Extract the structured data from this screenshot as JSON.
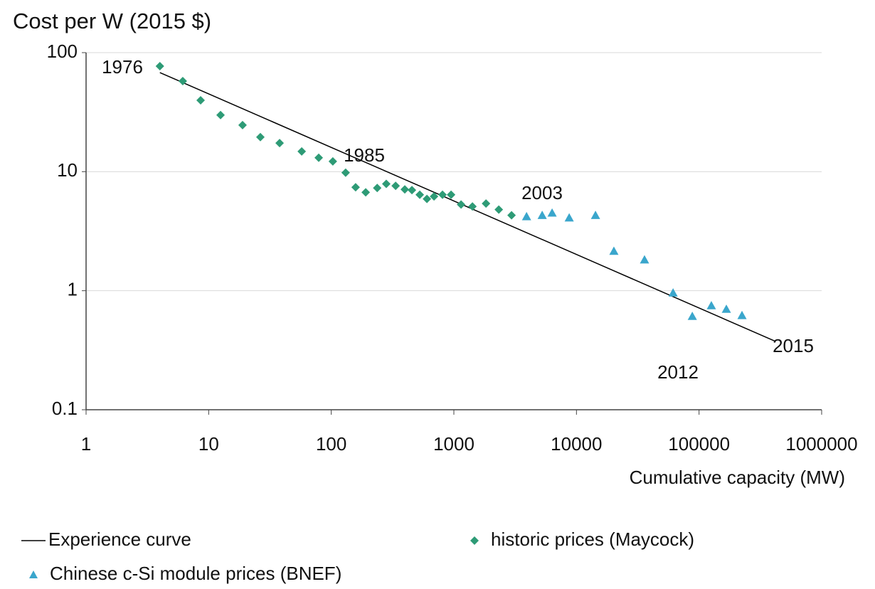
{
  "chart_data": {
    "type": "scatter",
    "title": "Cost per W (2015 $)",
    "x_label": "Cumulative capacity (MW)",
    "xlog": true,
    "ylog": true,
    "grid": true,
    "xlim": [
      1,
      1000000
    ],
    "xticks": [
      1,
      10,
      100,
      1000,
      10000,
      100000,
      1000000
    ],
    "ylim": [
      0.1,
      100
    ],
    "yticks": [
      0.1,
      1,
      10,
      100
    ],
    "series": [
      {
        "name": "Experience curve",
        "kind": "line",
        "color": "#000000",
        "x": [
          4,
          421000
        ],
        "values": [
          68,
          0.375
        ]
      },
      {
        "name": "historic prices (Maycock)",
        "kind": "diamond",
        "color": "#2e9b76",
        "x": [
          4,
          6.15,
          8.6,
          12.5,
          18.9,
          26.4,
          37.9,
          57.4,
          79,
          103,
          131,
          158,
          191,
          237,
          281,
          335,
          398,
          455,
          527,
          603,
          689,
          808,
          949,
          1145,
          1418,
          1829,
          2325,
          2955
        ],
        "values": [
          77,
          57.7,
          39.8,
          29.9,
          24.6,
          19.5,
          17.4,
          14.8,
          13.1,
          12.2,
          9.8,
          7.4,
          6.7,
          7.3,
          7.9,
          7.6,
          7.1,
          7.0,
          6.4,
          5.9,
          6.2,
          6.4,
          6.4,
          5.3,
          5.1,
          5.4,
          4.8,
          4.3
        ]
      },
      {
        "name": "Chinese c-Si module prices (BNEF)",
        "kind": "triangle",
        "color": "#3aa6cc",
        "x": [
          3917,
          5253,
          6329,
          8726,
          14300,
          20200,
          35900,
          61400,
          88100,
          126000,
          167000,
          224000
        ],
        "values": [
          4.2,
          4.3,
          4.5,
          4.1,
          4.3,
          2.15,
          1.82,
          0.96,
          0.61,
          0.75,
          0.7,
          0.62
        ]
      }
    ],
    "annotations": [
      "1976",
      "1985",
      "2003",
      "2012",
      "2015"
    ]
  }
}
